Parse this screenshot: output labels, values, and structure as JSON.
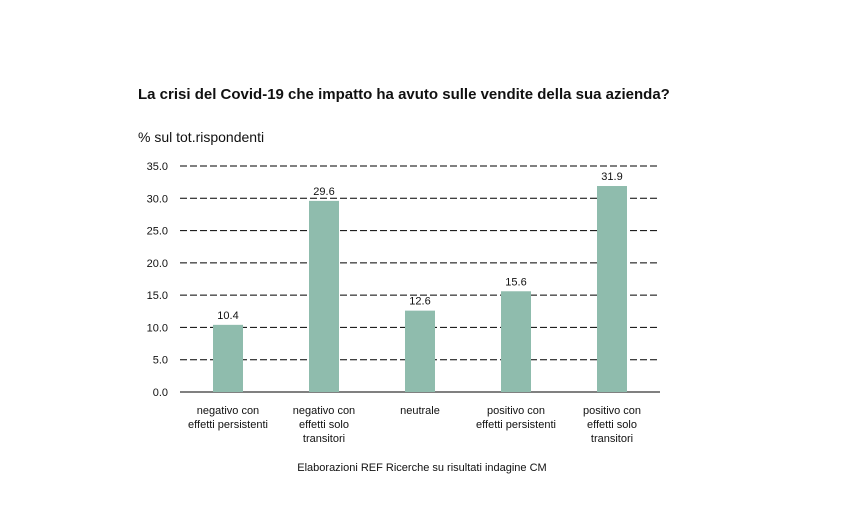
{
  "chart_data": {
    "type": "bar",
    "title": "La crisi del Covid-19 che impatto ha avuto sulle vendite  della sua azienda?",
    "ylabel": "% sul tot.rispondenti",
    "xlabel": "",
    "categories": [
      [
        "negativo con",
        "effetti persistenti"
      ],
      [
        "negativo con",
        "effetti solo",
        "transitori"
      ],
      [
        "neutrale"
      ],
      [
        "positivo con",
        "effetti persistenti"
      ],
      [
        "positivo con",
        "effetti solo",
        "transitori"
      ]
    ],
    "values": [
      10.4,
      29.6,
      12.6,
      15.6,
      31.9
    ],
    "data_labels": [
      "10.4",
      "29.6",
      "12.6",
      "15.6",
      "31.9"
    ],
    "ylim": [
      0,
      35
    ],
    "yticks": [
      "0.0",
      "5.0",
      "10.0",
      "15.0",
      "20.0",
      "25.0",
      "30.0",
      "35.0"
    ],
    "grid": true,
    "legend": "none",
    "bar_color": "#8fbcad",
    "note": "Elaborazioni REF Ricerche su risultati indagine CM"
  }
}
